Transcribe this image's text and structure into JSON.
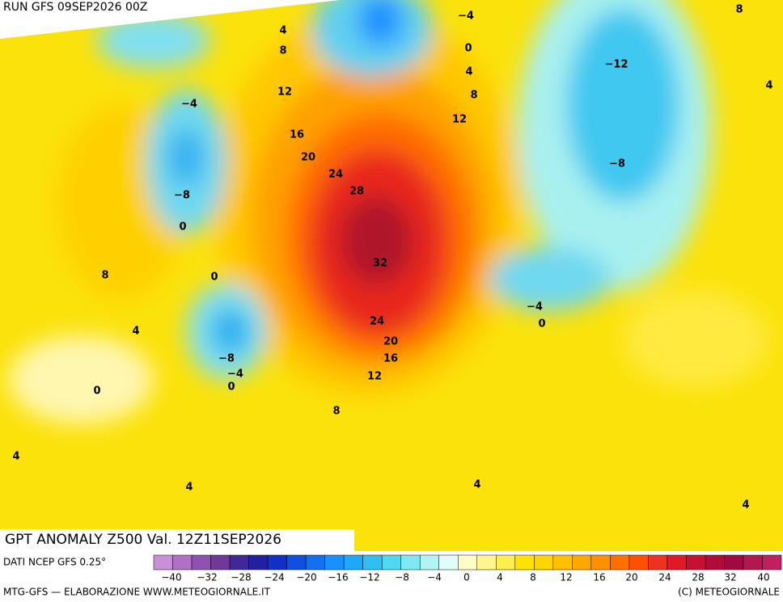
{
  "header": {
    "run": "RUN GFS 09SEP2026 00Z"
  },
  "map": {
    "contour_labels": [
      "−4",
      "0",
      "4",
      "8",
      "12",
      "8",
      "4",
      "−12",
      "−8",
      "4",
      "8",
      "12",
      "16",
      "20",
      "24",
      "28",
      "32",
      "−4",
      "−8",
      "0",
      "0",
      "8",
      "4",
      "−8",
      "−4",
      "0",
      "0",
      "24",
      "20",
      "16",
      "12",
      "8",
      "−4",
      "0",
      "4",
      "4",
      "4",
      "4"
    ]
  },
  "footer": {
    "title": "GPT ANOMALY Z500 Val. 12Z11SEP2026",
    "source": "DATI NCEP GFS 0.25°",
    "colorbar_labels": [
      "−40",
      "−32",
      "−28",
      "−24",
      "−20",
      "−16",
      "−12",
      "−8",
      "−4",
      "0",
      "4",
      "8",
      "12",
      "16",
      "20",
      "24",
      "28",
      "32",
      "40"
    ],
    "credit_left": "MTG-GFS — ELABORAZIONE WWW.METEOGIORNALE.IT",
    "credit_right": "(C) METEOGIORNALE"
  }
}
